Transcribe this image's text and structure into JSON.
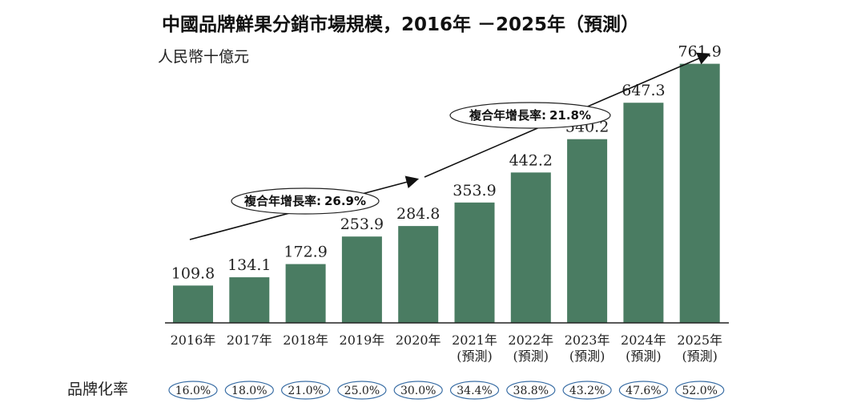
{
  "chart_data": {
    "type": "bar",
    "title": "中國品牌鮮果分銷市場規模，2016年 －2025年（預測）",
    "unit": "人民幣十億元",
    "categories": [
      [
        "2016年",
        ""
      ],
      [
        "2017年",
        ""
      ],
      [
        "2018年",
        ""
      ],
      [
        "2019年",
        ""
      ],
      [
        "2020年",
        ""
      ],
      [
        "2021年",
        "(預測)"
      ],
      [
        "2022年",
        "(預測)"
      ],
      [
        "2023年",
        "(預測)"
      ],
      [
        "2024年",
        "(預測)"
      ],
      [
        "2025年",
        "(預測)"
      ]
    ],
    "values": [
      109.8,
      134.1,
      172.9,
      253.9,
      284.8,
      353.9,
      442.2,
      540.2,
      647.3,
      761.9
    ],
    "value_labels": [
      "109.8",
      "134.1",
      "172.9",
      "253.9",
      "284.8",
      "353.9",
      "442.2",
      "540.2",
      "647.3",
      "761.9"
    ],
    "ylim": [
      0,
      800
    ],
    "bar_color": "#4a7c62",
    "cagr_annotations": [
      {
        "label": "複合年增長率:",
        "value": "26.9%"
      },
      {
        "label": "複合年增長率:",
        "value": "21.8%"
      }
    ],
    "brand_rate": {
      "label": "品牌化率",
      "values": [
        "16.0%",
        "18.0%",
        "21.0%",
        "25.0%",
        "30.0%",
        "34.4%",
        "38.8%",
        "43.2%",
        "47.6%",
        "52.0%"
      ],
      "ellipse_color": "#3a6ea5"
    }
  }
}
